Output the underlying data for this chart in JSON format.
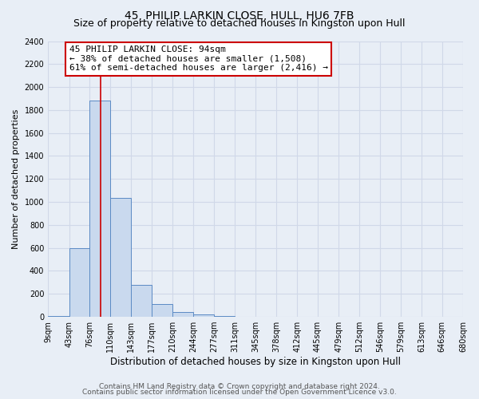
{
  "title": "45, PHILIP LARKIN CLOSE, HULL, HU6 7FB",
  "subtitle": "Size of property relative to detached houses in Kingston upon Hull",
  "xlabel": "Distribution of detached houses by size in Kingston upon Hull",
  "ylabel": "Number of detached properties",
  "bin_edges": [
    9,
    43,
    76,
    110,
    143,
    177,
    210,
    244,
    277,
    311,
    345,
    378,
    412,
    445,
    479,
    512,
    546,
    579,
    613,
    646,
    680
  ],
  "bar_heights": [
    10,
    600,
    1880,
    1035,
    275,
    115,
    45,
    20,
    5,
    0,
    0,
    0,
    0,
    0,
    0,
    0,
    0,
    0,
    0,
    0
  ],
  "bar_color": "#c9d9ee",
  "bar_edge_color": "#5b8ac4",
  "property_size": 94,
  "vline_color": "#cc0000",
  "annotation_line1": "45 PHILIP LARKIN CLOSE: 94sqm",
  "annotation_line2": "← 38% of detached houses are smaller (1,508)",
  "annotation_line3": "61% of semi-detached houses are larger (2,416) →",
  "annotation_box_color": "#ffffff",
  "annotation_box_edge_color": "#cc0000",
  "ylim": [
    0,
    2400
  ],
  "yticks": [
    0,
    200,
    400,
    600,
    800,
    1000,
    1200,
    1400,
    1600,
    1800,
    2000,
    2200,
    2400
  ],
  "footer_line1": "Contains HM Land Registry data © Crown copyright and database right 2024.",
  "footer_line2": "Contains public sector information licensed under the Open Government Licence v3.0.",
  "background_color": "#e8eef6",
  "plot_bg_color": "#e8eef6",
  "grid_color": "#d0d8e8",
  "title_fontsize": 10,
  "subtitle_fontsize": 9,
  "xlabel_fontsize": 8.5,
  "ylabel_fontsize": 8,
  "tick_fontsize": 7,
  "annotation_fontsize": 8,
  "footer_fontsize": 6.5
}
